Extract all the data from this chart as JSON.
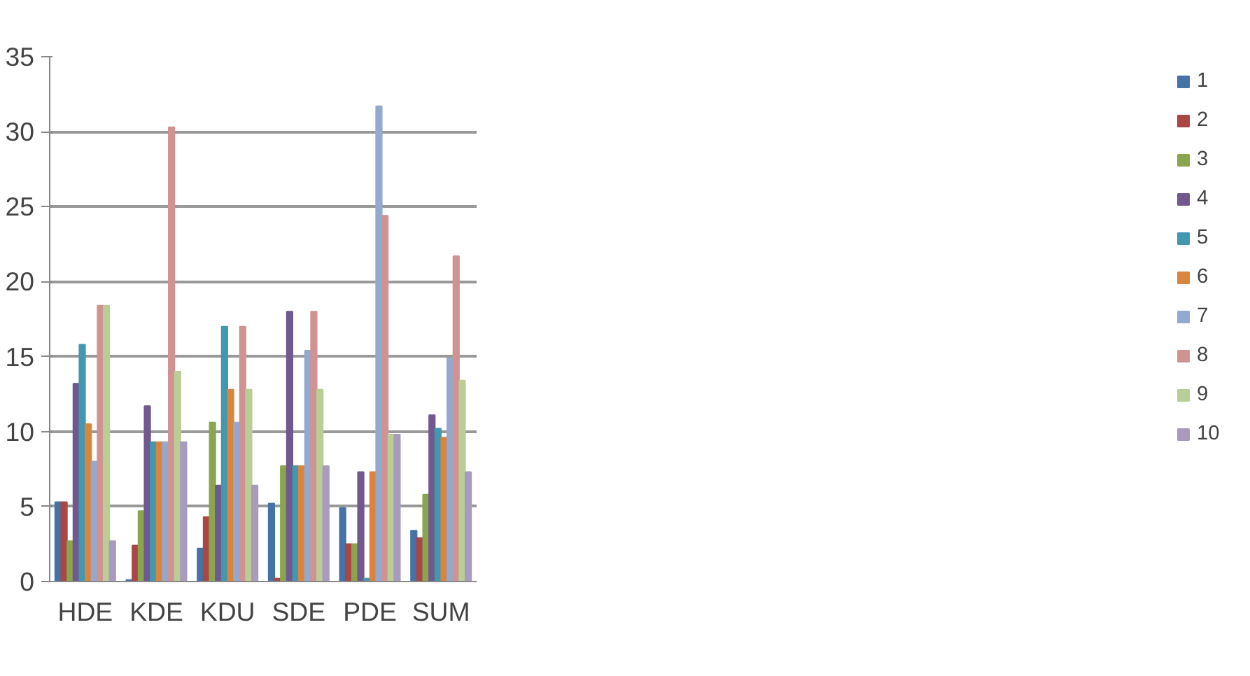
{
  "chart_data": {
    "type": "bar",
    "categories": [
      "HDE",
      "KDE",
      "KDU",
      "SDE",
      "PDE",
      "SUM"
    ],
    "series": [
      {
        "name": "1",
        "color": "#4572a7",
        "values": [
          5.3,
          0.1,
          2.2,
          5.2,
          4.9,
          3.4
        ]
      },
      {
        "name": "2",
        "color": "#aa4643",
        "values": [
          5.3,
          2.4,
          4.3,
          0.2,
          2.5,
          2.9
        ]
      },
      {
        "name": "3",
        "color": "#89a54e",
        "values": [
          2.7,
          4.7,
          10.6,
          7.7,
          2.5,
          5.8
        ]
      },
      {
        "name": "4",
        "color": "#71588f",
        "values": [
          13.2,
          11.7,
          6.4,
          18.0,
          7.3,
          11.1
        ]
      },
      {
        "name": "5",
        "color": "#4198af",
        "values": [
          15.8,
          9.3,
          17.0,
          7.7,
          0.2,
          10.2
        ]
      },
      {
        "name": "6",
        "color": "#db843d",
        "values": [
          10.5,
          9.3,
          12.8,
          7.7,
          7.3,
          9.6
        ]
      },
      {
        "name": "7",
        "color": "#93a9cf",
        "values": [
          8.0,
          9.3,
          10.6,
          15.4,
          31.7,
          14.9
        ]
      },
      {
        "name": "8",
        "color": "#d19392",
        "values": [
          18.4,
          30.3,
          17.0,
          18.0,
          24.4,
          21.7
        ]
      },
      {
        "name": "9",
        "color": "#b9cd96",
        "values": [
          18.4,
          14.0,
          12.8,
          12.8,
          9.8,
          13.4
        ]
      },
      {
        "name": "10",
        "color": "#a99bbd",
        "values": [
          2.7,
          9.3,
          6.4,
          7.7,
          9.8,
          7.3
        ]
      }
    ],
    "ylim": [
      0,
      35
    ],
    "yticks": [
      0,
      5,
      10,
      15,
      20,
      25,
      30,
      35
    ],
    "grid": "y",
    "legend": "right"
  }
}
